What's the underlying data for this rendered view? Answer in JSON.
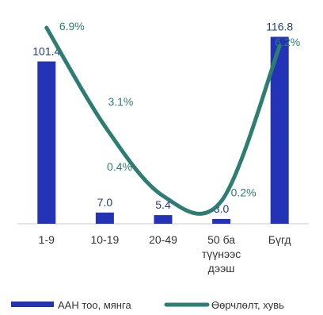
{
  "chart_data": {
    "type": "bar",
    "categories": [
      "1-9",
      "10-19",
      "20-49",
      "50 ба түүнээс дээш",
      "Бүгд"
    ],
    "category_label_lines": [
      [
        "1-9"
      ],
      [
        "10-19"
      ],
      [
        "20-49"
      ],
      [
        "50 ба",
        "түүнээс",
        "дээш"
      ],
      [
        "Бүгд"
      ]
    ],
    "series": [
      {
        "name": "ААН тоо, мянга",
        "type": "bar",
        "values": [
          101.4,
          7.0,
          5.4,
          3.0,
          116.8
        ],
        "labels": [
          "101.4",
          "7.0",
          "5.4",
          "3.0",
          "116.8"
        ],
        "color": "#2432b5"
      },
      {
        "name": "Өөрчлөлт, хувь",
        "type": "line",
        "smooth": true,
        "values": [
          6.9,
          3.1,
          0.4,
          0.2,
          6.2
        ],
        "labels": [
          "6.9%",
          "3.1%",
          "0.4%",
          "0.2%",
          "6.2%"
        ],
        "color": "#2e7d72"
      }
    ],
    "bar_label_color": "#1f3f7a",
    "line_label_color": "#2e7d72",
    "axis_label_color": "#333333",
    "legend_position": "bottom",
    "grid": false
  }
}
